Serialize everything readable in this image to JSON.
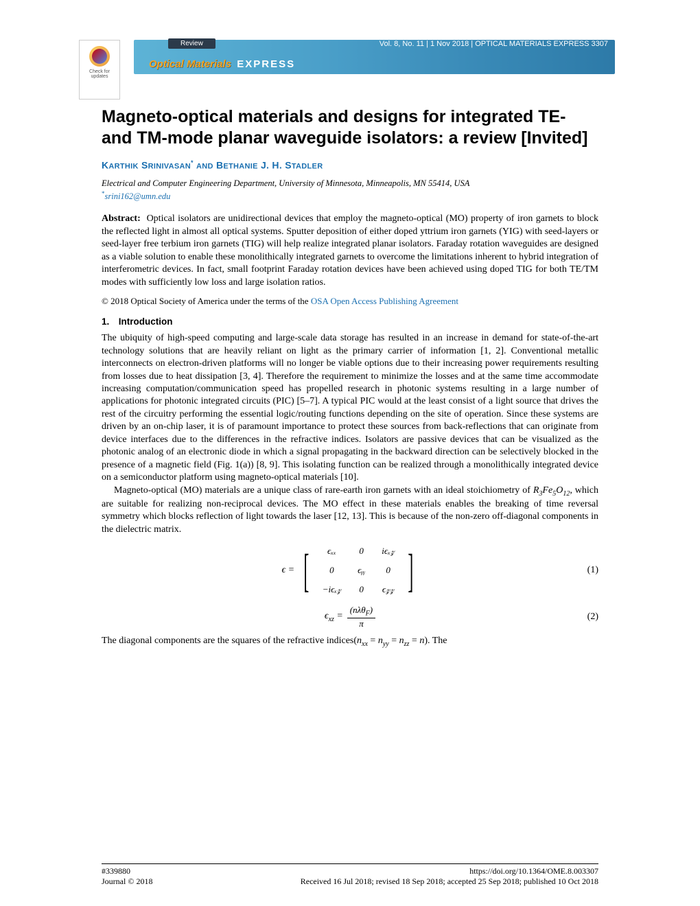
{
  "header": {
    "review_label": "Review",
    "vol_info": "Vol. 8, No. 11 | 1 Nov 2018 | OPTICAL MATERIALS EXPRESS 3307",
    "journal_optical": "Optical Materials",
    "journal_express": "EXPRESS",
    "check_line1": "Check for",
    "check_line2": "updates"
  },
  "title": "Magneto-optical materials and designs for integrated TE- and TM-mode planar waveguide isolators: a review [Invited]",
  "authors_html": "KARTHIK SRINIVASAN* AND BETHANIE J. H. STADLER",
  "affiliation": "Electrical and Computer Engineering Department, University of Minnesota, Minneapolis, MN 55414, USA",
  "email": "srini162@umn.edu",
  "abstract_label": "Abstract:",
  "abstract_text": "Optical isolators are unidirectional devices that employ the magneto-optical (MO) property of iron garnets to block the reflected light in almost all optical systems. Sputter deposition of either doped yttrium iron garnets (YIG) with seed-layers or seed-layer free terbium iron garnets (TIG) will help realize integrated planar isolators. Faraday rotation waveguides are designed as a viable solution to enable these monolithically integrated garnets to overcome the limitations inherent to hybrid integration of interferometric devices. In fact, small footprint Faraday rotation devices have been achieved using doped TIG for both TE/TM modes with sufficiently low loss and large isolation ratios.",
  "copyright_prefix": "© 2018 Optical Society of America under the terms of the ",
  "copyright_link": "OSA Open Access Publishing Agreement",
  "section1_heading": "1. Introduction",
  "para1": "The ubiquity of high-speed computing and large-scale data storage has resulted in an increase in demand for state-of-the-art technology solutions that are heavily reliant on light as the primary carrier of information [1, 2]. Conventional metallic interconnects on electron-driven platforms will no longer be viable options due to their increasing power requirements resulting from losses due to heat dissipation [3, 4]. Therefore the requirement to minimize the losses and at the same time accommodate increasing computation/communication speed has propelled research in photonic systems resulting in a large number of applications for photonic integrated circuits (PIC) [5–7]. A typical PIC would at the least consist of a light source that drives the rest of the circuitry performing the essential logic/routing functions depending on the site of operation. Since these systems are driven by an on-chip laser, it is of paramount importance to protect these sources from back-reflections that can originate from device interfaces due to the differences in the refractive indices. Isolators are passive devices that can be visualized as the photonic analog of an electronic diode in which a signal propagating in the backward direction can be selectively blocked in the presence of a magnetic field (Fig. 1(a)) [8, 9]. This isolating function can be realized through a monolithically integrated device on a semiconductor platform using magneto-optical materials [10].",
  "para2_prefix": "Magneto-optical (MO) materials are a unique class of rare-earth iron garnets with an ideal stoichiometry of ",
  "para2_formula": "R₃Fe₅O₁₂",
  "para2_suffix": ", which are suitable for realizing non-reciprocal devices. The MO effect in these materials enables the breaking of time reversal symmetry which blocks reflection of light towards the laser [12, 13]. This is because of the non-zero off-diagonal components in the dielectric matrix.",
  "eq1_lhs": "ϵ =",
  "matrix": {
    "r1": [
      "ϵₓₓ",
      "0",
      "iϵₓ𝓏"
    ],
    "r2": [
      "0",
      "ϵᵧᵧ",
      "0"
    ],
    "r3": [
      "−iϵₓ𝓏",
      "0",
      "ϵ𝓏𝓏"
    ]
  },
  "eq1_num": "(1)",
  "eq2_lhs": "ϵₓ𝓏 =",
  "eq2_num_frac": "(nλθF)",
  "eq2_den": "π",
  "eq2_num": "(2)",
  "para3": "The diagonal components are the squares of the refractive indices(nₓₓ = nᵧᵧ = n𝓏𝓏 = n). The",
  "footer": {
    "id": "#339880",
    "journal": "Journal © 2018",
    "doi": "https://doi.org/10.1364/OME.8.003307",
    "dates": "Received 16 Jul 2018; revised 18 Sep 2018; accepted 25 Sep 2018; published 10 Oct 2018"
  },
  "colors": {
    "link": "#1a6fb0",
    "banner_start": "#5db3d6",
    "banner_end": "#2d7aa8"
  }
}
